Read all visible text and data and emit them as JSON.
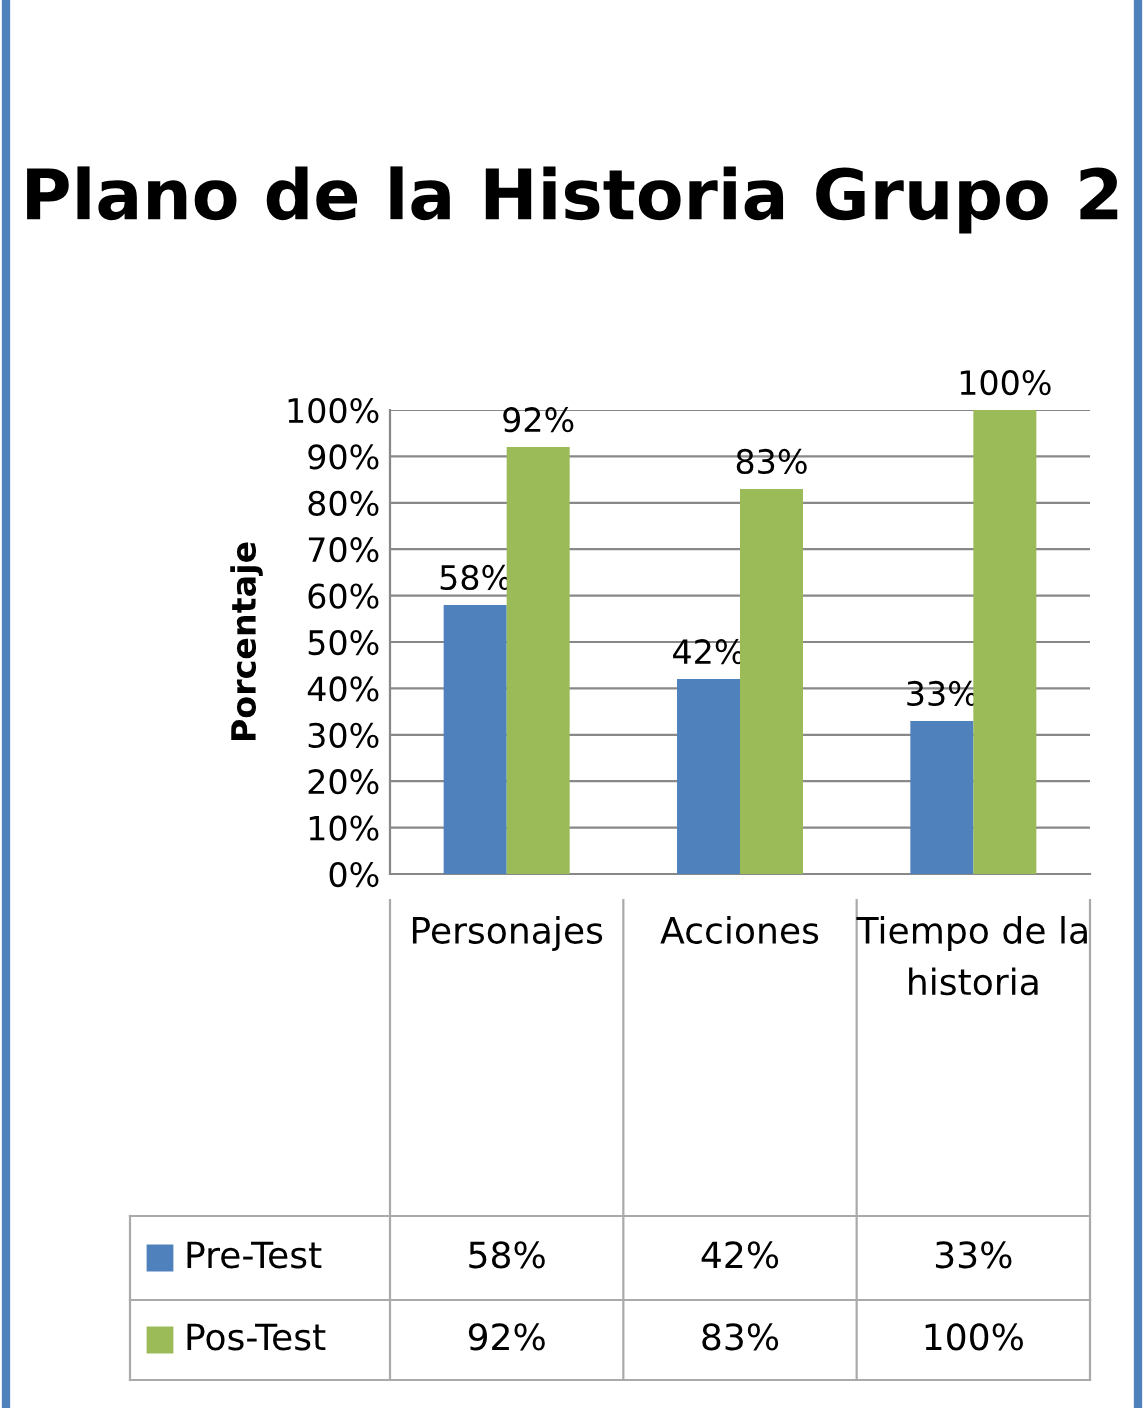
{
  "chart_data": {
    "type": "bar",
    "title": "Plano de la Historia Grupo 2",
    "ylabel": "Porcentaje",
    "categories": [
      "Personajes",
      "Acciones",
      "Tiempo de la historia"
    ],
    "series": [
      {
        "name": "Pre-Test",
        "color": "#4f81bd",
        "values": [
          58,
          42,
          33
        ],
        "value_labels": [
          "58%",
          "42%",
          "33%"
        ]
      },
      {
        "name": "Pos-Test",
        "color": "#9bbb59",
        "values": [
          92,
          83,
          100
        ],
        "value_labels": [
          "92%",
          "83%",
          "100%"
        ]
      }
    ],
    "ylim": [
      0,
      100
    ],
    "yticks": [
      {
        "value": 0,
        "label": "0%"
      },
      {
        "value": 10,
        "label": "10%"
      },
      {
        "value": 20,
        "label": "20%"
      },
      {
        "value": 30,
        "label": "30%"
      },
      {
        "value": 40,
        "label": "40%"
      },
      {
        "value": 50,
        "label": "50%"
      },
      {
        "value": 60,
        "label": "60%"
      },
      {
        "value": 70,
        "label": "70%"
      },
      {
        "value": 80,
        "label": "80%"
      },
      {
        "value": 90,
        "label": "90%"
      },
      {
        "value": 100,
        "label": "100%"
      }
    ],
    "grid": "y",
    "legend": "bottom"
  }
}
